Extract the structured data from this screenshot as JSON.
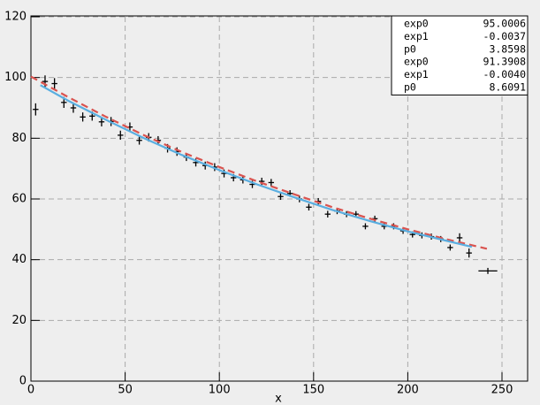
{
  "chart_data": {
    "type": "scatter",
    "x_label": "x",
    "xlim": [
      0,
      263.6
    ],
    "ylim": [
      0,
      120
    ],
    "xticks": [
      0,
      50,
      100,
      150,
      200,
      250
    ],
    "yticks": [
      0,
      20,
      40,
      60,
      80,
      100,
      120
    ],
    "grid": true,
    "series": [
      {
        "type": "errorbar",
        "color": "#000000",
        "x": [
          2.5,
          7.5,
          12.5,
          17.5,
          22.5,
          27.5,
          32.5,
          37.5,
          42.5,
          47.5,
          52.5,
          57.5,
          62.5,
          67.5,
          72.5,
          77.5,
          82.5,
          87.5,
          92.5,
          97.5,
          102.5,
          107.5,
          112.5,
          117.5,
          122.5,
          127.5,
          132.5,
          137.5,
          142.5,
          147.5,
          152.5,
          157.5,
          162.5,
          167.5,
          172.5,
          177.5,
          182.5,
          187.5,
          192.5,
          197.5,
          202.5,
          207.5,
          212.5,
          217.5,
          222.5,
          227.5,
          232.5,
          242.5
        ],
        "values": [
          89.5,
          98.7,
          98,
          91.8,
          90,
          87,
          87.3,
          85.4,
          85.5,
          81,
          83.7,
          79.3,
          80.3,
          79.3,
          76.7,
          75.6,
          73.8,
          72,
          71,
          70.5,
          68.4,
          67,
          66.3,
          64.8,
          65.8,
          65.4,
          60.8,
          61.8,
          60,
          57.3,
          59.2,
          55,
          56,
          55,
          55,
          51,
          53.5,
          51,
          51,
          49.5,
          48.3,
          48,
          47.6,
          46.8,
          44,
          47.2,
          42.2,
          36.3
        ],
        "xerr": [
          1.5,
          1.5,
          1.5,
          1.5,
          1.5,
          1.5,
          1.5,
          1.5,
          1.5,
          1.5,
          1.5,
          1.5,
          1.5,
          1.5,
          1.5,
          1.5,
          1.5,
          1.5,
          1.5,
          1.5,
          1.5,
          1.5,
          1.5,
          1.5,
          1.5,
          1.5,
          1.5,
          1.5,
          1.5,
          1.5,
          1.5,
          1.5,
          1.5,
          1.5,
          1.5,
          1.5,
          1.5,
          1.5,
          1.5,
          1.5,
          1.5,
          1.5,
          1.5,
          1.5,
          1.5,
          1.5,
          1.5,
          5
        ],
        "yerr": [
          2,
          2,
          1.8,
          1.8,
          1.6,
          1.5,
          1.5,
          1.5,
          1.5,
          1.5,
          1.5,
          1.4,
          1.4,
          1.4,
          1.4,
          1.4,
          1.3,
          1.3,
          1.3,
          1.3,
          1.3,
          1.2,
          1.2,
          1.2,
          1.2,
          1.2,
          1.1,
          1.1,
          1.1,
          1.1,
          1.1,
          1.1,
          1,
          1,
          1,
          1,
          1,
          1,
          1,
          1,
          1,
          1,
          1,
          1,
          1,
          1.5,
          1.5,
          1
        ]
      },
      {
        "type": "line",
        "color": "#d9534f",
        "dashed": true,
        "x": [
          0,
          20,
          40,
          60,
          80,
          100,
          120,
          140,
          160,
          180,
          200,
          220,
          242
        ],
        "values": [
          100.3,
          93.5,
          87,
          81,
          75.5,
          70.5,
          65.8,
          61.5,
          57.3,
          53.5,
          50,
          46.8,
          43.6
        ]
      },
      {
        "type": "line",
        "color": "#5aaee0",
        "dashed": false,
        "x": [
          5,
          20,
          40,
          60,
          80,
          100,
          120,
          140,
          160,
          180,
          200,
          220,
          234
        ],
        "values": [
          97.5,
          92.3,
          86,
          80,
          74.5,
          69.5,
          64.8,
          60.5,
          56.4,
          52.7,
          49.3,
          46.3,
          44.2
        ]
      }
    ],
    "stats_box": {
      "rows": [
        {
          "label": "exp0",
          "value": "95.0006"
        },
        {
          "label": "exp1",
          "value": "-0.0037"
        },
        {
          "label": "p0",
          "value": "3.8598"
        },
        {
          "label": "exp0",
          "value": "91.3908"
        },
        {
          "label": "exp1",
          "value": "-0.0040"
        },
        {
          "label": "p0",
          "value": "8.6091"
        }
      ]
    }
  }
}
